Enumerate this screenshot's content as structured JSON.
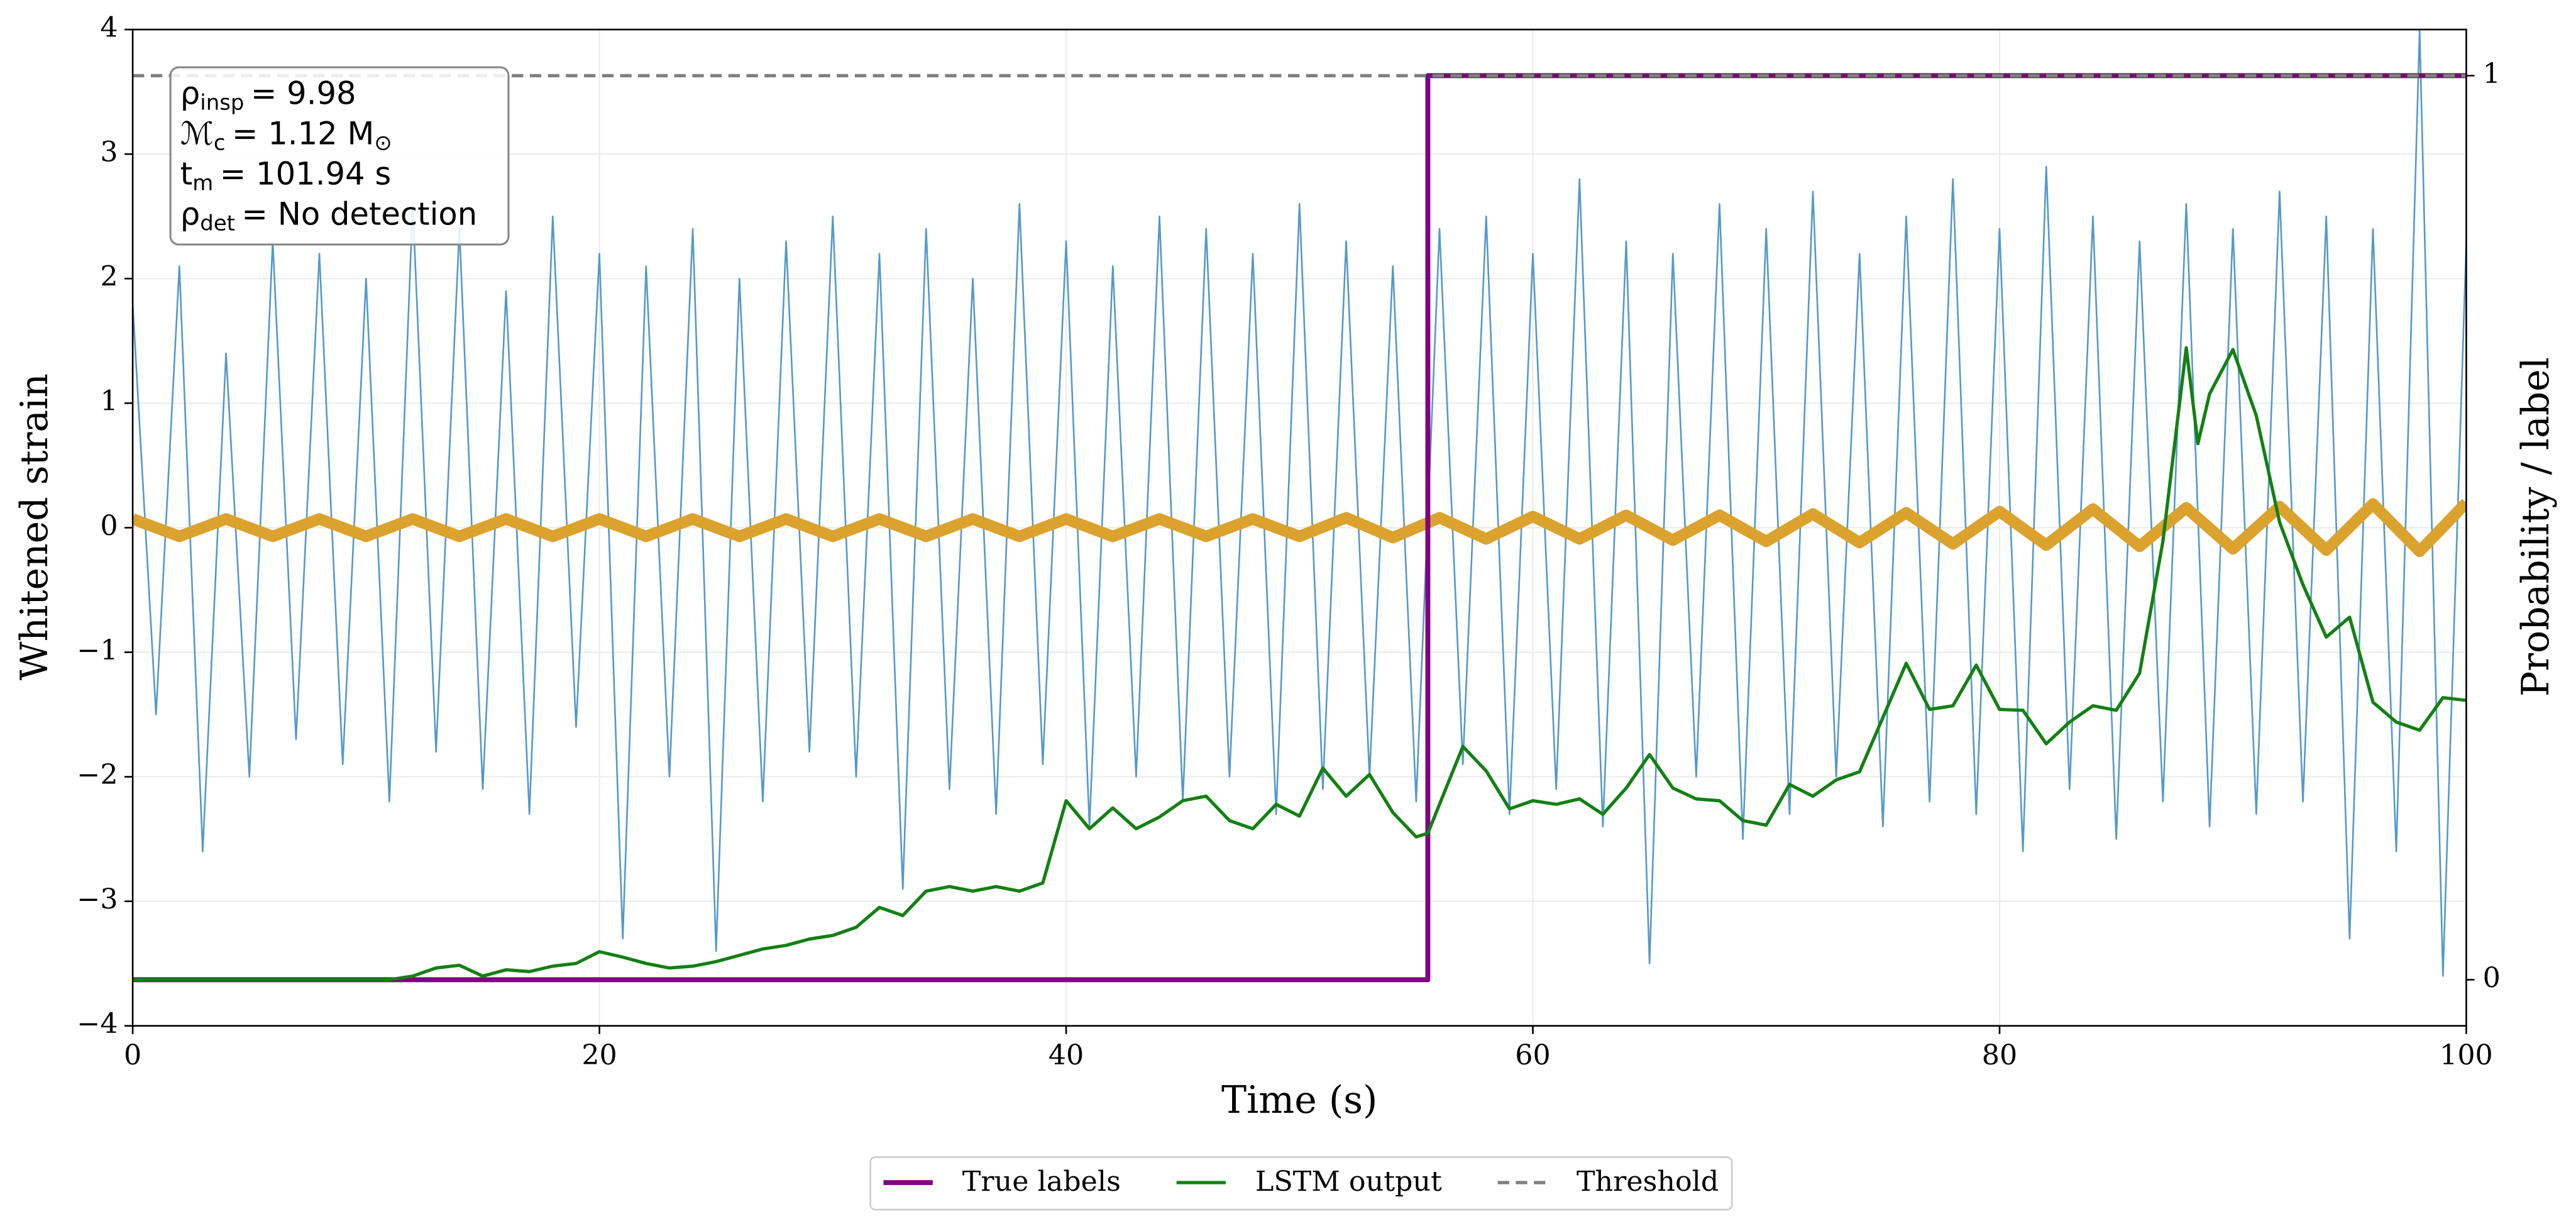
{
  "chart_data": {
    "type": "line",
    "xlabel": "Time (s)",
    "ylabel": "Whitened strain",
    "y2label": "Probability / label",
    "xlim": [
      0,
      100
    ],
    "ylim": [
      -4,
      4
    ],
    "y2lim": [
      -0.051,
      1.051
    ],
    "xticks": [
      0,
      20,
      40,
      60,
      80,
      100
    ],
    "yticks": [
      {
        "value": -4,
        "label": "−4"
      },
      {
        "value": -3,
        "label": "−3"
      },
      {
        "value": -2,
        "label": "−2"
      },
      {
        "value": -1,
        "label": "−1"
      },
      0,
      1,
      2,
      3,
      4
    ],
    "y2ticks": [
      0,
      1
    ],
    "grid": true,
    "legend": "lower center",
    "annotation": [
      [
        "ρ",
        "insp",
        "= 9.98"
      ],
      [
        "ℳ",
        "c",
        "= 1.12 M",
        "⊙"
      ],
      [
        "t",
        "m",
        "= 101.94 s"
      ],
      [
        "ρ",
        "det",
        "= No detection"
      ]
    ],
    "series": [
      {
        "color": "#5599c7",
        "width": 1,
        "x": [
          0,
          1,
          2,
          3,
          4,
          5,
          6,
          7,
          8,
          9,
          10,
          11,
          12,
          13,
          14,
          15,
          16,
          17,
          18,
          19,
          20,
          21,
          22,
          23,
          24,
          25,
          26,
          27,
          28,
          29,
          30,
          31,
          32,
          33,
          34,
          35,
          36,
          37,
          38,
          39,
          40,
          41,
          42,
          43,
          44,
          45,
          46,
          47,
          48,
          49,
          50,
          51,
          52,
          53,
          54,
          55,
          56,
          57,
          58,
          59,
          60,
          61,
          62,
          63,
          64,
          65,
          66,
          67,
          68,
          69,
          70,
          71,
          72,
          73,
          74,
          75,
          76,
          77,
          78,
          79,
          80,
          81,
          82,
          83,
          84,
          85,
          86,
          87,
          88,
          89,
          90,
          91,
          92,
          93,
          94,
          95,
          96,
          97,
          98,
          99,
          100
        ],
        "values": [
          1.8,
          -1.5,
          2.1,
          -2.6,
          1.4,
          -2.0,
          2.3,
          -1.7,
          2.2,
          -1.9,
          2.0,
          -2.2,
          2.6,
          -1.8,
          2.4,
          -2.1,
          1.9,
          -2.3,
          2.5,
          -1.6,
          2.2,
          -3.3,
          2.1,
          -2.0,
          2.4,
          -3.4,
          2.0,
          -2.2,
          2.3,
          -1.8,
          2.5,
          -2.0,
          2.2,
          -2.9,
          2.4,
          -2.1,
          2.0,
          -2.3,
          2.6,
          -1.9,
          2.3,
          -2.4,
          2.1,
          -2.0,
          2.5,
          -2.2,
          2.4,
          -2.0,
          2.2,
          -2.3,
          2.6,
          -2.1,
          2.3,
          -2.0,
          2.1,
          -2.2,
          2.4,
          -1.9,
          2.5,
          -2.3,
          2.2,
          -2.1,
          2.8,
          -2.4,
          2.3,
          -3.5,
          2.2,
          -2.0,
          2.6,
          -2.5,
          2.4,
          -2.3,
          2.7,
          -2.0,
          2.2,
          -2.4,
          2.5,
          -2.2,
          2.8,
          -2.3,
          2.4,
          -2.6,
          2.9,
          -2.1,
          2.5,
          -2.5,
          2.3,
          -2.2,
          2.6,
          -2.4,
          2.4,
          -2.3,
          2.7,
          -2.2,
          2.5,
          -3.3,
          2.4,
          -2.6,
          4.0,
          -3.6,
          2.3
        ]
      },
      {
        "color": "#dba22e",
        "width": 7,
        "x": [
          0,
          2,
          4,
          6,
          8,
          10,
          12,
          14,
          16,
          18,
          20,
          22,
          24,
          26,
          28,
          30,
          32,
          34,
          36,
          38,
          40,
          42,
          44,
          46,
          48,
          50,
          52,
          54,
          56,
          58,
          60,
          62,
          64,
          66,
          68,
          70,
          72,
          74,
          76,
          78,
          80,
          82,
          84,
          86,
          88,
          90,
          92,
          94,
          96,
          98,
          100
        ],
        "values": [
          0.07,
          -0.07,
          0.07,
          -0.07,
          0.07,
          -0.07,
          0.07,
          -0.07,
          0.07,
          -0.07,
          0.07,
          -0.07,
          0.07,
          -0.07,
          0.07,
          -0.07,
          0.07,
          -0.07,
          0.07,
          -0.07,
          0.07,
          -0.07,
          0.07,
          -0.07,
          0.07,
          -0.07,
          0.08,
          -0.08,
          0.08,
          -0.09,
          0.09,
          -0.09,
          0.1,
          -0.1,
          0.1,
          -0.11,
          0.11,
          -0.12,
          0.12,
          -0.13,
          0.13,
          -0.14,
          0.15,
          -0.15,
          0.16,
          -0.17,
          0.17,
          -0.18,
          0.19,
          -0.19,
          0.2
        ]
      },
      {
        "name": "True labels",
        "color": "#800080",
        "width": 3,
        "axis": "y2",
        "x": [
          0,
          55.5,
          55.5,
          100
        ],
        "values": [
          0,
          0,
          1,
          1
        ]
      },
      {
        "name": "LSTM output",
        "color": "#138013",
        "width": 2,
        "axis": "y2",
        "x": [
          0,
          11,
          12,
          13,
          14,
          15,
          16,
          17,
          18,
          19,
          20,
          21,
          22,
          23,
          24,
          25,
          26,
          27,
          28,
          29,
          30,
          31,
          32,
          33,
          34,
          35,
          36,
          37,
          38,
          39,
          40,
          41,
          42,
          43,
          44,
          45,
          46,
          47,
          48,
          49,
          50,
          51,
          52,
          53,
          54,
          55,
          55.5,
          56,
          57,
          58,
          59,
          60,
          61,
          62,
          63,
          64,
          65,
          66,
          67,
          68,
          69,
          70,
          71,
          72,
          73,
          74,
          75,
          76,
          77,
          78,
          79,
          80,
          81,
          82,
          83,
          84,
          85,
          86,
          87,
          88,
          88.5,
          89,
          90,
          91,
          92,
          93,
          94,
          95,
          96,
          97,
          98,
          99,
          100
        ],
        "values": [
          0,
          0,
          0.004,
          0.013,
          0.016,
          0.004,
          0.011,
          0.009,
          0.015,
          0.018,
          0.031,
          0.025,
          0.018,
          0.013,
          0.015,
          0.02,
          0.027,
          0.034,
          0.038,
          0.045,
          0.049,
          0.058,
          0.08,
          0.071,
          0.098,
          0.103,
          0.098,
          0.103,
          0.098,
          0.107,
          0.198,
          0.167,
          0.19,
          0.167,
          0.18,
          0.198,
          0.203,
          0.176,
          0.167,
          0.194,
          0.181,
          0.234,
          0.203,
          0.227,
          0.185,
          0.158,
          0.162,
          0.194,
          0.258,
          0.231,
          0.189,
          0.198,
          0.194,
          0.2,
          0.183,
          0.212,
          0.249,
          0.212,
          0.2,
          0.198,
          0.176,
          0.171,
          0.216,
          0.203,
          0.221,
          0.23,
          0.29,
          0.35,
          0.299,
          0.303,
          0.348,
          0.299,
          0.298,
          0.261,
          0.285,
          0.303,
          0.298,
          0.339,
          0.485,
          0.699,
          0.593,
          0.648,
          0.697,
          0.624,
          0.506,
          0.437,
          0.379,
          0.401,
          0.307,
          0.285,
          0.276,
          0.312,
          0.309
        ]
      }
    ],
    "threshold": {
      "name": "Threshold",
      "value": 1,
      "color": "#808080",
      "axis": "y2"
    }
  }
}
